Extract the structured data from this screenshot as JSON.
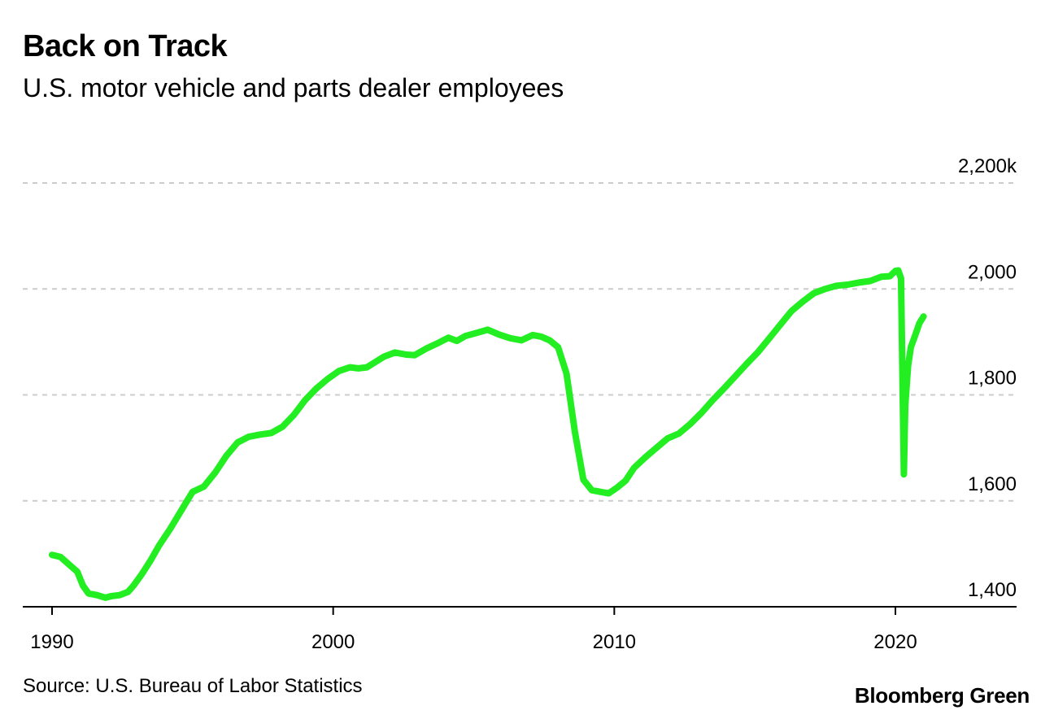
{
  "title": "Back on Track",
  "subtitle": "U.S. motor vehicle and parts dealer employees",
  "source": "Source: U.S. Bureau of Labor Statistics",
  "brand": "Bloomberg Green",
  "colors": {
    "line": "#22ee22",
    "grid": "#cccccc",
    "axis": "#000000"
  },
  "chart_data": {
    "type": "line",
    "title": "Back on Track",
    "subtitle": "U.S. motor vehicle and parts dealer employees",
    "xlabel": "",
    "ylabel": "",
    "xlim": [
      1990,
      2022
    ],
    "ylim": [
      1400,
      2200
    ],
    "x_ticks": [
      1990,
      2000,
      2010,
      2020
    ],
    "x_tick_labels": [
      "1990",
      "2000",
      "2010",
      "2020"
    ],
    "y_ticks": [
      1400,
      1600,
      1800,
      2000,
      2200
    ],
    "y_tick_labels": [
      "1,400",
      "1,600",
      "1,800",
      "2,000",
      "2,200k"
    ],
    "grid": true,
    "series": [
      {
        "x": [
          1990.0,
          1990.3,
          1990.6,
          1990.9,
          1991.1,
          1991.3,
          1991.6,
          1991.9,
          1992.1,
          1992.4,
          1992.7,
          1992.9,
          1993.2,
          1993.5,
          1993.8,
          1994.2,
          1994.6,
          1995.0,
          1995.4,
          1995.8,
          1996.2,
          1996.6,
          1997.0,
          1997.4,
          1997.8,
          1998.2,
          1998.6,
          1999.0,
          1999.4,
          1999.8,
          2000.2,
          2000.6,
          2000.9,
          2001.2,
          2001.5,
          2001.8,
          2002.2,
          2002.6,
          2002.9,
          2003.3,
          2003.7,
          2004.1,
          2004.4,
          2004.7,
          2005.1,
          2005.5,
          2005.9,
          2006.3,
          2006.7,
          2007.1,
          2007.4,
          2007.7,
          2008.0,
          2008.3,
          2008.6,
          2008.9,
          2009.2,
          2009.5,
          2009.8,
          2010.1,
          2010.4,
          2010.7,
          2011.1,
          2011.5,
          2011.9,
          2012.3,
          2012.7,
          2013.1,
          2013.5,
          2013.9,
          2014.3,
          2014.7,
          2015.1,
          2015.5,
          2015.9,
          2016.3,
          2016.7,
          2017.1,
          2017.5,
          2017.9,
          2018.3,
          2018.7,
          2019.1,
          2019.5,
          2019.8,
          2020.0,
          2020.1,
          2020.2,
          2020.3,
          2020.35,
          2020.45,
          2020.55,
          2020.7,
          2020.85,
          2021.0
        ],
        "y": [
          1498,
          1494,
          1480,
          1466,
          1440,
          1425,
          1422,
          1417,
          1420,
          1422,
          1428,
          1440,
          1462,
          1487,
          1515,
          1547,
          1582,
          1617,
          1627,
          1653,
          1685,
          1710,
          1721,
          1725,
          1728,
          1740,
          1762,
          1790,
          1812,
          1830,
          1845,
          1852,
          1850,
          1852,
          1862,
          1872,
          1880,
          1876,
          1875,
          1887,
          1897,
          1908,
          1902,
          1911,
          1917,
          1923,
          1914,
          1907,
          1903,
          1913,
          1910,
          1903,
          1890,
          1840,
          1730,
          1640,
          1620,
          1617,
          1614,
          1625,
          1638,
          1662,
          1682,
          1700,
          1718,
          1727,
          1745,
          1766,
          1790,
          1812,
          1835,
          1858,
          1880,
          1906,
          1932,
          1958,
          1976,
          1992,
          2000,
          2006,
          2008,
          2012,
          2015,
          2023,
          2024,
          2034,
          2035,
          2020,
          1650,
          1780,
          1855,
          1890,
          1912,
          1935,
          1948
        ]
      }
    ]
  }
}
